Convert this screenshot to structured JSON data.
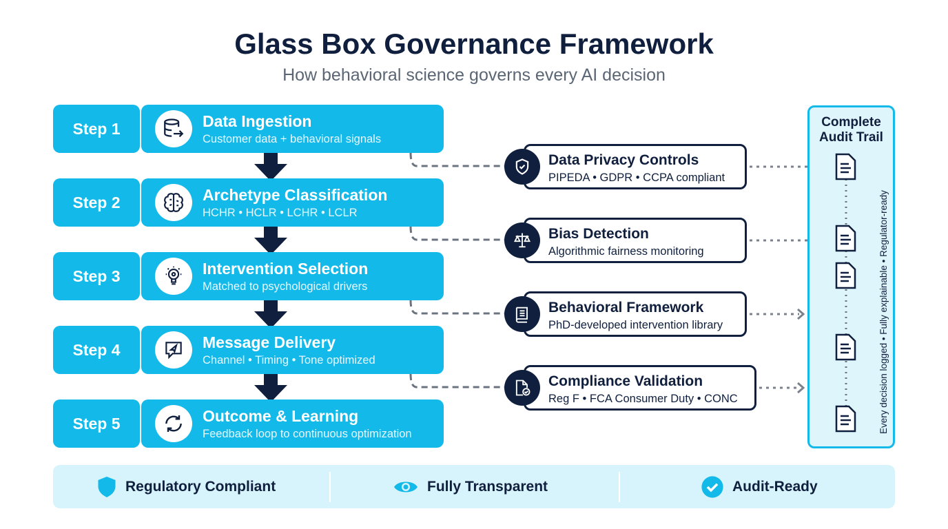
{
  "title": "Glass Box Governance Framework",
  "subtitle": "How behavioral science governs every AI decision",
  "steps": [
    {
      "label": "Step 1",
      "title": "Data Ingestion",
      "subtitle": "Customer data + behavioral signals",
      "icon": "database-export-icon"
    },
    {
      "label": "Step 2",
      "title": "Archetype Classification",
      "subtitle": "HCHR • HCLR • LCHR • LCLR",
      "icon": "brain-icon"
    },
    {
      "label": "Step 3",
      "title": "Intervention Selection",
      "subtitle": "Matched to psychological drivers",
      "icon": "lightbulb-icon"
    },
    {
      "label": "Step 4",
      "title": "Message Delivery",
      "subtitle": "Channel • Timing • Tone optimized",
      "icon": "message-send-icon"
    },
    {
      "label": "Step 5",
      "title": "Outcome & Learning",
      "subtitle": "Feedback loop to continuous optimization",
      "icon": "refresh-icon"
    }
  ],
  "controls": [
    {
      "title": "Data Privacy Controls",
      "subtitle": "PIPEDA • GDPR • CCPA compliant",
      "icon": "shield-check-icon"
    },
    {
      "title": "Bias Detection",
      "subtitle": "Algorithmic fairness monitoring",
      "icon": "scales-icon"
    },
    {
      "title": "Behavioral Framework",
      "subtitle": "PhD-developed intervention library",
      "icon": "book-icon"
    },
    {
      "title": "Compliance Validation",
      "subtitle": "Reg F • FCA Consumer Duty • CONC",
      "icon": "document-check-icon"
    }
  ],
  "audit": {
    "title": "Complete Audit Trail",
    "vertical": "Every decision logged • Fully explainable • Regulator-ready"
  },
  "badges": [
    {
      "label": "Regulatory Compliant",
      "icon": "shield-icon"
    },
    {
      "label": "Fully Transparent",
      "icon": "eye-icon"
    },
    {
      "label": "Audit-Ready",
      "icon": "check-circle-icon"
    }
  ],
  "colors": {
    "accent": "#12b9e9",
    "navy": "#0f1f3d",
    "light": "#d7f3fb"
  }
}
